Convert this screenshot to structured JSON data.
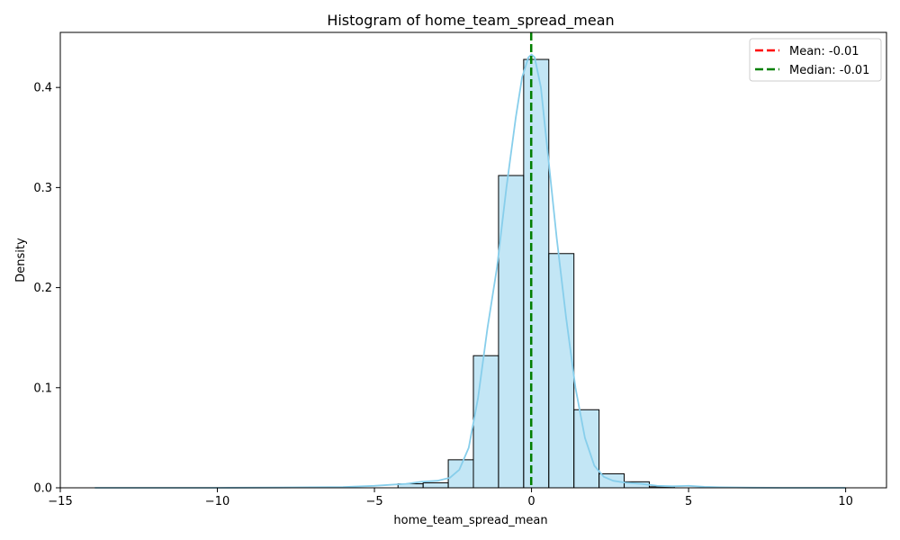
{
  "chart_data": {
    "type": "bar",
    "title": "Histogram of home_team_spread_mean",
    "xlabel": "home_team_spread_mean",
    "ylabel": "Density",
    "xlim": [
      -15,
      11.3
    ],
    "ylim": [
      0,
      0.455
    ],
    "xticks": [
      -15,
      -10,
      -5,
      0,
      5,
      10
    ],
    "xtick_labels": [
      "−15",
      "−10",
      "−5",
      "0",
      "5",
      "10"
    ],
    "yticks": [
      0.0,
      0.1,
      0.2,
      0.3,
      0.4
    ],
    "ytick_labels": [
      "0.0",
      "0.1",
      "0.2",
      "0.3",
      "0.4"
    ],
    "grid": false,
    "legend_position": "top-right",
    "bar_color": "#87ceeb",
    "bar_edge_color": "#000000",
    "bins": [
      {
        "x0": -4.25,
        "x1": -3.45,
        "value": 0.004
      },
      {
        "x0": -3.45,
        "x1": -2.65,
        "value": 0.005
      },
      {
        "x0": -2.65,
        "x1": -1.85,
        "value": 0.028
      },
      {
        "x0": -1.85,
        "x1": -1.05,
        "value": 0.132
      },
      {
        "x0": -1.05,
        "x1": -0.25,
        "value": 0.312
      },
      {
        "x0": -0.25,
        "x1": 0.55,
        "value": 0.428
      },
      {
        "x0": 0.55,
        "x1": 1.35,
        "value": 0.234
      },
      {
        "x0": 1.35,
        "x1": 2.15,
        "value": 0.078
      },
      {
        "x0": 2.15,
        "x1": 2.95,
        "value": 0.014
      },
      {
        "x0": 2.95,
        "x1": 3.75,
        "value": 0.006
      },
      {
        "x0": 3.75,
        "x1": 4.55,
        "value": 0.001
      }
    ],
    "kde": {
      "color": "#87ceeb",
      "x": [
        -13.9,
        -10,
        -8,
        -6,
        -5,
        -4.5,
        -4,
        -3.5,
        -3,
        -2.6,
        -2.3,
        -2,
        -1.7,
        -1.4,
        -1.1,
        -0.8,
        -0.5,
        -0.3,
        -0.1,
        0,
        0.1,
        0.3,
        0.5,
        0.8,
        1.1,
        1.4,
        1.7,
        2,
        2.3,
        2.6,
        3,
        3.5,
        4,
        4.5,
        5,
        5.5,
        6,
        7,
        8,
        10
      ],
      "y": [
        0,
        0,
        0.0003,
        0.0008,
        0.002,
        0.003,
        0.004,
        0.006,
        0.007,
        0.01,
        0.018,
        0.04,
        0.09,
        0.16,
        0.22,
        0.3,
        0.37,
        0.41,
        0.43,
        0.433,
        0.43,
        0.4,
        0.34,
        0.25,
        0.17,
        0.1,
        0.05,
        0.022,
        0.011,
        0.007,
        0.005,
        0.004,
        0.002,
        0.0015,
        0.002,
        0.001,
        0.0005,
        0.0002,
        0,
        0
      ]
    },
    "lines": [
      {
        "name": "Mean: -0.01",
        "x": -0.01,
        "color": "#ff0000",
        "dash": "dashed"
      },
      {
        "name": "Median: -0.01",
        "x": -0.01,
        "color": "#008000",
        "dash": "dashed"
      }
    ]
  }
}
